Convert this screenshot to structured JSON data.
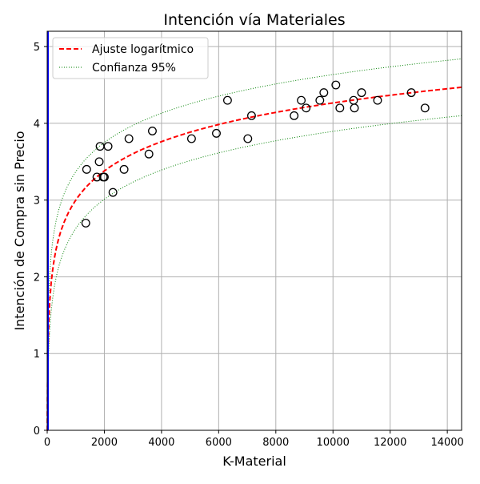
{
  "chart_data": {
    "type": "scatter",
    "title": "Intención vía Materiales",
    "xlabel": "K-Material",
    "ylabel": "Intención de Compra sin Precio",
    "xlim": [
      0,
      14500
    ],
    "ylim": [
      0,
      5.2
    ],
    "xticks": [
      0,
      2000,
      4000,
      6000,
      8000,
      10000,
      12000,
      14000
    ],
    "yticks": [
      0,
      1,
      2,
      3,
      4,
      5
    ],
    "grid": true,
    "legend_position": "top-left",
    "points": [
      [
        1350,
        2.7
      ],
      [
        1380,
        3.4
      ],
      [
        1740,
        3.3
      ],
      [
        1820,
        3.5
      ],
      [
        1850,
        3.7
      ],
      [
        1960,
        3.3
      ],
      [
        2000,
        3.3
      ],
      [
        2130,
        3.7
      ],
      [
        2300,
        3.1
      ],
      [
        2690,
        3.4
      ],
      [
        2860,
        3.8
      ],
      [
        3560,
        3.6
      ],
      [
        3680,
        3.9
      ],
      [
        5050,
        3.8
      ],
      [
        5920,
        3.87
      ],
      [
        6310,
        4.3
      ],
      [
        7020,
        3.8
      ],
      [
        7150,
        4.1
      ],
      [
        8640,
        4.1
      ],
      [
        8890,
        4.3
      ],
      [
        9060,
        4.2
      ],
      [
        9540,
        4.3
      ],
      [
        9680,
        4.4
      ],
      [
        10100,
        4.5
      ],
      [
        10240,
        4.2
      ],
      [
        10720,
        4.3
      ],
      [
        10750,
        4.2
      ],
      [
        11000,
        4.4
      ],
      [
        11560,
        4.3
      ],
      [
        12740,
        4.4
      ],
      [
        13220,
        4.2
      ]
    ],
    "fit": {
      "name": "Ajuste logarítmico",
      "model": "y = a + b*ln(x)",
      "a": -0.8,
      "b": 0.55,
      "color": "#ff0000"
    },
    "confidence": {
      "name": "Confianza 95%",
      "halfwidth": 0.37,
      "color": "#008000"
    },
    "vline": {
      "x": 0,
      "color": "#0000ff"
    }
  }
}
